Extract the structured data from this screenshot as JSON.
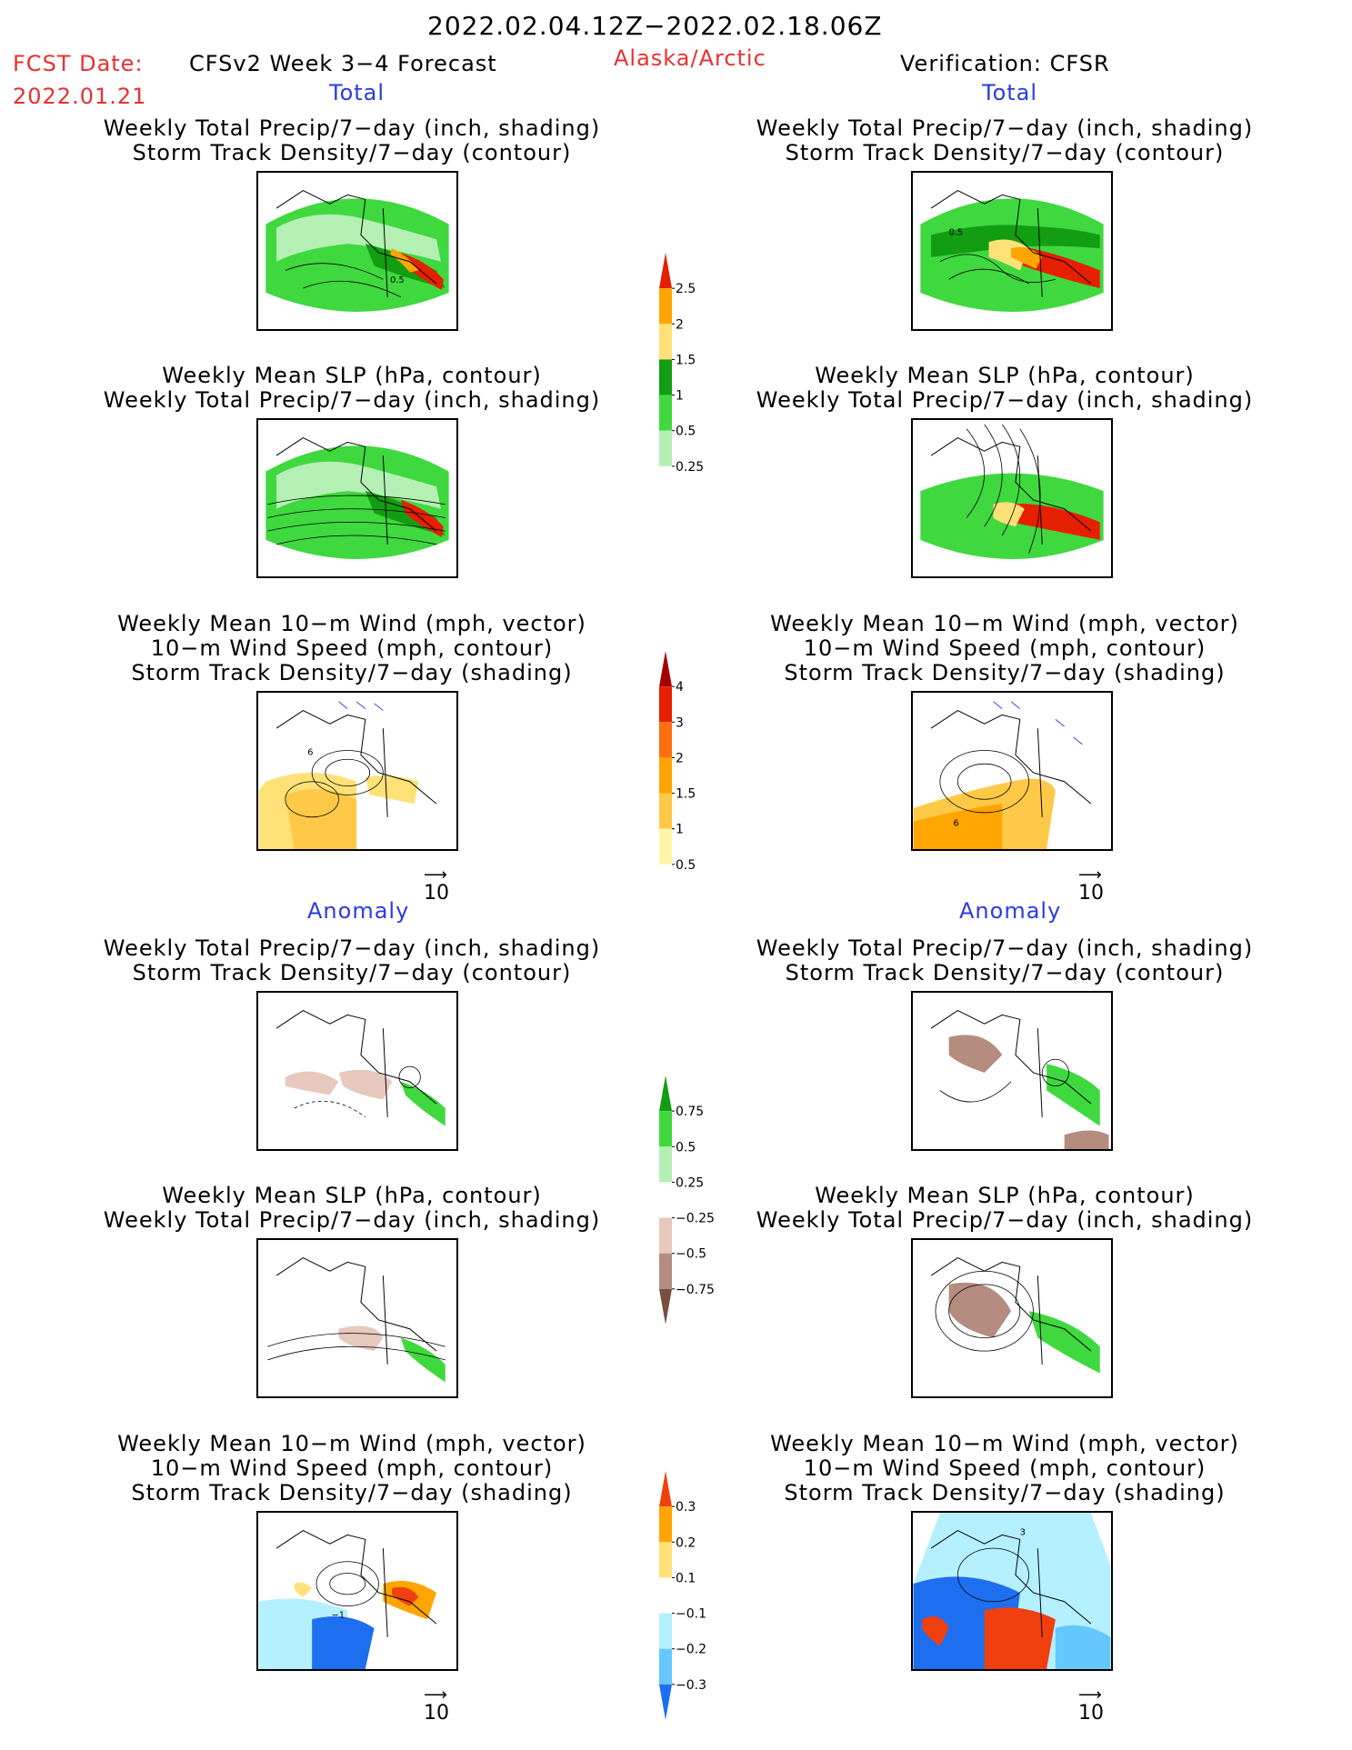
{
  "header": {
    "date_range": "2022.02.04.12Z−2022.02.18.06Z",
    "fcst_label": "FCST Date:",
    "fcst_date": "2022.01.21",
    "product": "CFSv2 Week 3−4 Forecast",
    "region": "Alaska/Arctic",
    "verification": "Verification: CFSR"
  },
  "sections": {
    "total_left": "Total",
    "total_right": "Total",
    "anomaly_left": "Anomaly",
    "anomaly_right": "Anomaly"
  },
  "titles": {
    "precip_track": [
      "Weekly Total Precip/7−day (inch, shading)",
      "Storm Track Density/7−day (contour)"
    ],
    "slp_precip": [
      "Weekly Mean SLP (hPa, contour)",
      "Weekly Total Precip/7−day (inch, shading)"
    ],
    "wind": [
      "Weekly Mean 10−m Wind (mph, vector)",
      "10−m Wind Speed (mph, contour)",
      "Storm Track Density/7−day (shading)"
    ]
  },
  "contour_labels": {
    "fcst_precip_total": "0.5",
    "obs_precip_total": "0.5",
    "fcst_wind_total": "6",
    "obs_wind_total": "6",
    "fcst_wind_anom": "−1",
    "obs_wind_anom": "3"
  },
  "vector_ref": "10",
  "colorbars": {
    "precip_total": {
      "labels": [
        "2.5",
        "2",
        "1.5",
        "1",
        "0.5",
        "0.25"
      ],
      "colors": [
        "#e61f00",
        "#ffa500",
        "#ffe178",
        "#139d13",
        "#3fd83f",
        "#b4f0b4"
      ]
    },
    "track_total": {
      "labels": [
        "4",
        "3",
        "2",
        "1.5",
        "1",
        "0.5"
      ],
      "colors": [
        "#a40000",
        "#e62000",
        "#ff6f10",
        "#ffa500",
        "#ffc948",
        "#fff5a8"
      ]
    },
    "precip_anom": {
      "labels": [
        "0.75",
        "0.5",
        "0.25",
        "−0.25",
        "−0.5",
        "−0.75"
      ],
      "colors": [
        "#139d13",
        "#3fd83f",
        "#b4f0b4",
        "#ffffff",
        "#e6c8bc",
        "#b48c80",
        "#785040"
      ]
    },
    "track_anom": {
      "labels": [
        "0.3",
        "0.2",
        "0.1",
        "−0.1",
        "−0.2",
        "−0.3"
      ],
      "colors": [
        "#f04010",
        "#ffa500",
        "#ffe178",
        "#ffffff",
        "#b4f0ff",
        "#64c8ff",
        "#1e6ef0"
      ]
    }
  }
}
